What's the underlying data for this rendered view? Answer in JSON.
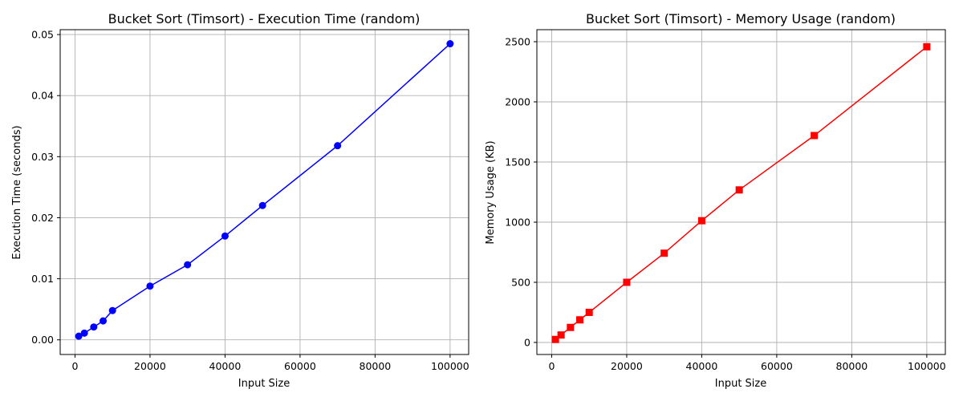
{
  "chart_data": [
    {
      "type": "line",
      "title": "Bucket Sort (Timsort) - Execution Time (random)",
      "xlabel": "Input Size",
      "ylabel": "Execution Time (seconds)",
      "xlim": [
        -3950,
        104950
      ],
      "ylim": [
        -0.0024,
        0.0508
      ],
      "xticks": [
        0,
        20000,
        40000,
        60000,
        80000,
        100000
      ],
      "xtick_labels": [
        "0",
        "20000",
        "40000",
        "60000",
        "80000",
        "100000"
      ],
      "yticks": [
        0.0,
        0.01,
        0.02,
        0.03,
        0.04,
        0.05
      ],
      "ytick_labels": [
        "0.00",
        "0.01",
        "0.02",
        "0.03",
        "0.04",
        "0.05"
      ],
      "grid": true,
      "series": [
        {
          "color": "#0000ff",
          "marker": "circle",
          "x": [
            1000,
            2500,
            5000,
            7500,
            10000,
            20000,
            30000,
            40000,
            50000,
            70000,
            100000
          ],
          "y": [
            0.0006,
            0.0011,
            0.0021,
            0.0031,
            0.0048,
            0.0088,
            0.0123,
            0.017,
            0.022,
            0.0318,
            0.0485
          ]
        }
      ]
    },
    {
      "type": "line",
      "title": "Bucket Sort (Timsort) - Memory Usage (random)",
      "xlabel": "Input Size",
      "ylabel": "Memory Usage (KB)",
      "xlim": [
        -3950,
        104950
      ],
      "ylim": [
        -100,
        2600
      ],
      "xticks": [
        0,
        20000,
        40000,
        60000,
        80000,
        100000
      ],
      "xtick_labels": [
        "0",
        "20000",
        "40000",
        "60000",
        "80000",
        "100000"
      ],
      "yticks": [
        0,
        500,
        1000,
        1500,
        2000,
        2500
      ],
      "ytick_labels": [
        "0",
        "500",
        "1000",
        "1500",
        "2000",
        "2500"
      ],
      "grid": true,
      "series": [
        {
          "color": "#ff0000",
          "marker": "square",
          "x": [
            1000,
            2500,
            5000,
            7500,
            10000,
            20000,
            30000,
            40000,
            50000,
            70000,
            100000
          ],
          "y": [
            25,
            62,
            125,
            188,
            250,
            500,
            742,
            1012,
            1268,
            1720,
            2458
          ]
        }
      ]
    }
  ]
}
